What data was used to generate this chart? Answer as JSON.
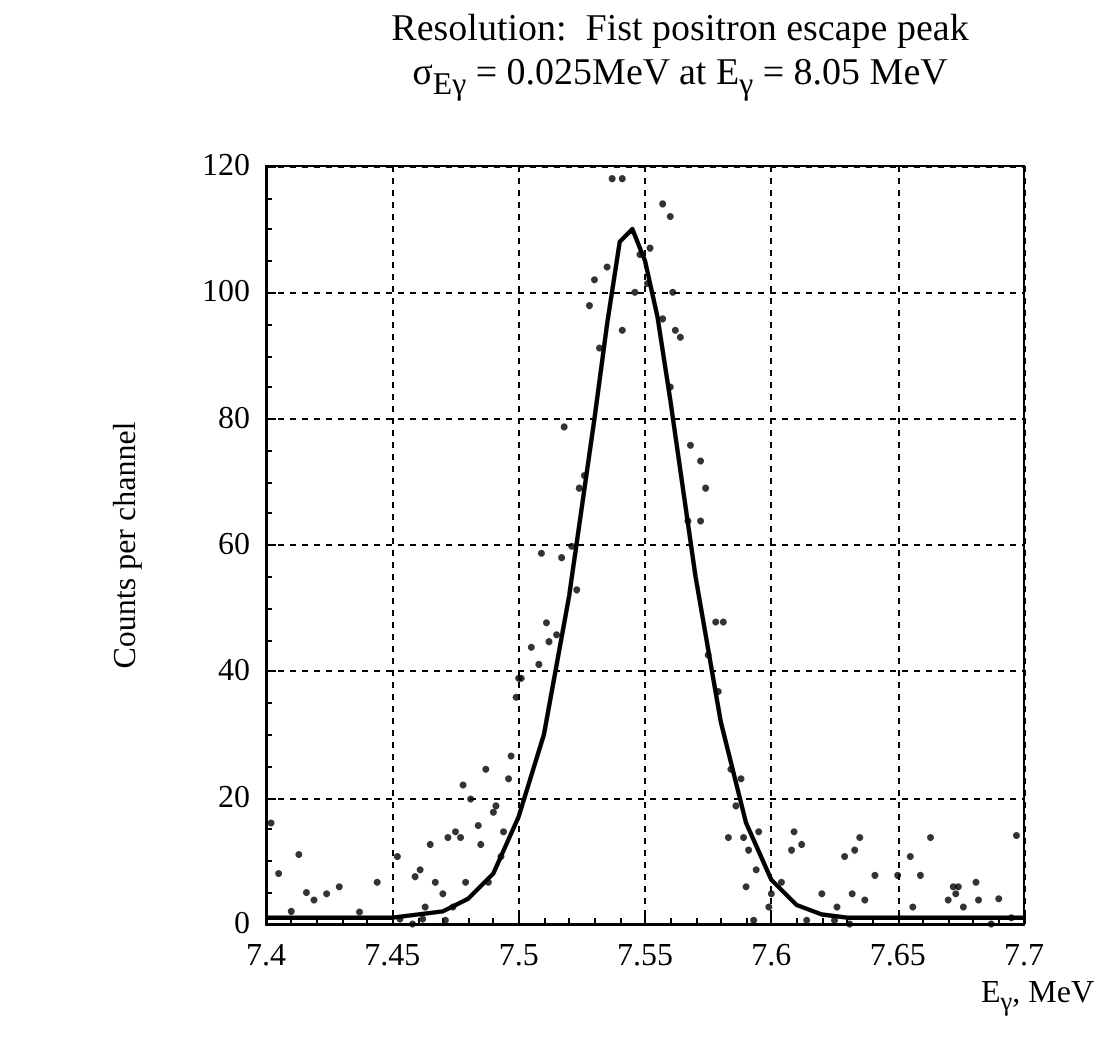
{
  "chart_data": {
    "type": "scatter",
    "title": "Resolution:  Fist positron escape peak",
    "subtitle": "σ$_{Eγ}$ = 0.025MeV at E$_{γ}$ = 8.05 MeV",
    "xlabel": "E$_{γ}$, MeV",
    "ylabel": "Counts per channel",
    "xlim": [
      7.4,
      7.7
    ],
    "xticks": [
      7.4,
      7.45,
      7.5,
      7.55,
      7.6,
      7.65,
      7.7
    ],
    "ylim": [
      0,
      120
    ],
    "yticks": [
      0,
      20,
      40,
      60,
      80,
      100,
      120
    ],
    "grid": true,
    "series": [
      {
        "color": "#000000",
        "marker": "circle",
        "x": [
          7.402,
          7.405,
          7.41,
          7.413,
          7.416,
          7.419,
          7.424,
          7.429,
          7.437,
          7.444,
          7.452,
          7.453,
          7.458,
          7.459,
          7.461,
          7.462,
          7.463,
          7.465,
          7.467,
          7.47,
          7.471,
          7.472,
          7.474,
          7.475,
          7.477,
          7.478,
          7.479,
          7.481,
          7.484,
          7.485,
          7.487,
          7.488,
          7.49,
          7.491,
          7.493,
          7.494,
          7.496,
          7.497,
          7.499,
          7.5,
          7.501,
          7.505,
          7.508,
          7.509,
          7.511,
          7.512,
          7.515,
          7.517,
          7.518,
          7.521,
          7.523,
          7.524,
          7.526,
          7.528,
          7.53,
          7.532,
          7.535,
          7.537,
          7.541,
          7.541,
          7.546,
          7.548,
          7.551,
          7.552,
          7.557,
          7.557,
          7.56,
          7.56,
          7.561,
          7.562,
          7.564,
          7.567,
          7.568,
          7.572,
          7.572,
          7.574,
          7.575,
          7.578,
          7.579,
          7.581,
          7.583,
          7.584,
          7.586,
          7.588,
          7.589,
          7.59,
          7.591,
          7.593,
          7.594,
          7.595,
          7.599,
          7.6,
          7.604,
          7.608,
          7.609,
          7.612,
          7.614,
          7.62,
          7.625,
          7.626,
          7.629,
          7.631,
          7.632,
          7.633,
          7.635,
          7.637,
          7.641,
          7.65,
          7.655,
          7.656,
          7.659,
          7.663,
          7.67,
          7.672,
          7.673,
          7.674,
          7.676,
          7.681,
          7.682,
          7.687,
          7.69,
          7.695,
          7.697
        ],
        "values": [
          16,
          8,
          2,
          11,
          5,
          3.8,
          4.8,
          5.9,
          1.9,
          6.6,
          10.7,
          0.8,
          0,
          7.5,
          8.6,
          0.8,
          2.7,
          12.6,
          6.6,
          4.8,
          0.6,
          13.7,
          2.7,
          14.6,
          13.7,
          22,
          6.6,
          19.8,
          15.6,
          12.6,
          24.5,
          6.6,
          17.7,
          18.7,
          10.7,
          14.6,
          23,
          26.6,
          35.9,
          38.9,
          38.9,
          43.8,
          41.1,
          58.7,
          47.7,
          44.7,
          45.8,
          58,
          78.7,
          59.8,
          52.9,
          69,
          71,
          97.9,
          102,
          91.2,
          104,
          118,
          94,
          118,
          100,
          106,
          101.4,
          107,
          95.8,
          114,
          85,
          112,
          100,
          94,
          92.9,
          63.8,
          75.8,
          73.3,
          63.8,
          69,
          42.6,
          47.8,
          36.8,
          47.8,
          13.7,
          24.5,
          18.7,
          23,
          13.7,
          5.9,
          11.7,
          0.6,
          8.6,
          14.6,
          2.7,
          4.8,
          6.6,
          11.7,
          14.6,
          12.6,
          0.6,
          4.8,
          0.6,
          2.7,
          10.7,
          0,
          4.8,
          11.7,
          13.7,
          3.8,
          7.7,
          7.7,
          10.7,
          2.7,
          7.7,
          13.7,
          3.8,
          5.9,
          4.8,
          5.9,
          2.7,
          6.6,
          3.8,
          0,
          4,
          1,
          14
        ]
      },
      {
        "type": "line",
        "color": "#000000",
        "marker": "none",
        "line_style": "solid",
        "x": [
          7.4,
          7.45,
          7.47,
          7.48,
          7.49,
          7.5,
          7.51,
          7.52,
          7.53,
          7.535,
          7.54,
          7.545,
          7.55,
          7.555,
          7.56,
          7.57,
          7.58,
          7.59,
          7.6,
          7.61,
          7.62,
          7.63,
          7.7
        ],
        "values": [
          1,
          1,
          2,
          4,
          8,
          17,
          30,
          52,
          80,
          95,
          108,
          110,
          105,
          96,
          83,
          55,
          32,
          16,
          7,
          3,
          1.5,
          1,
          1
        ]
      }
    ]
  }
}
